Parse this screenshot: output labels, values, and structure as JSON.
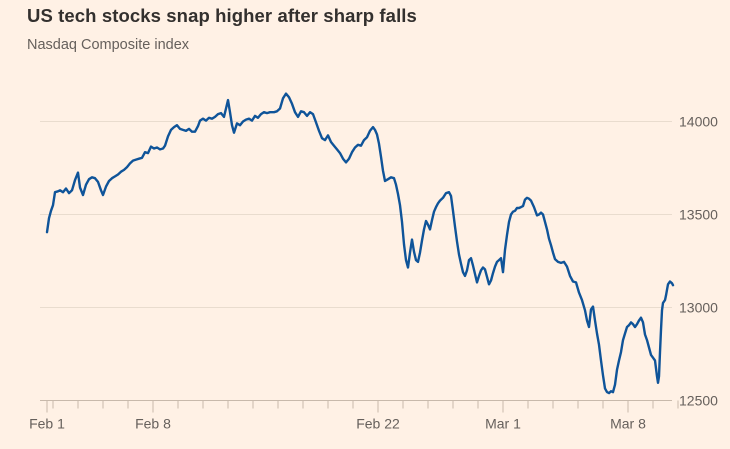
{
  "chart_data": {
    "type": "line",
    "title": "US tech stocks snap higher after sharp falls",
    "subtitle": "Nasdaq Composite index",
    "x_unit": "trading days since Feb 1 2021 (fractional = intraday)",
    "y_unit": "index points",
    "legend": "none",
    "grid": "horizontal",
    "y_axis_side": "right",
    "y_ticks": [
      12500,
      13000,
      13500,
      14000
    ],
    "ylim": [
      12500,
      14250
    ],
    "xlim": [
      -0.28,
      25.0
    ],
    "x_ticks": [
      {
        "label": "Feb 1",
        "d": 0.0
      },
      {
        "label": "Feb 8",
        "d": 4.24
      },
      {
        "label": "Feb 22",
        "d": 13.24
      },
      {
        "label": "Mar 1",
        "d": 18.24
      },
      {
        "label": "Mar 8",
        "d": 23.24
      }
    ],
    "x_minor_ticks_d": [
      0.24,
      1.24,
      2.24,
      3.24,
      5.24,
      6.24,
      7.24,
      8.24,
      9.24,
      10.24,
      11.24,
      12.24,
      14.24,
      15.24,
      16.24,
      17.24,
      19.24,
      20.24,
      21.24,
      22.24,
      24.24,
      25.24
    ],
    "series": [
      {
        "name": "Nasdaq Composite index",
        "color": "#0F5499",
        "points": [
          [
            0,
            13405
          ],
          [
            0.08,
            13480
          ],
          [
            0.16,
            13520
          ],
          [
            0.24,
            13550
          ],
          [
            0.32,
            13620
          ],
          [
            0.44,
            13625
          ],
          [
            0.52,
            13630
          ],
          [
            0.64,
            13620
          ],
          [
            0.76,
            13640
          ],
          [
            0.88,
            13615
          ],
          [
            1,
            13630
          ],
          [
            1.12,
            13685
          ],
          [
            1.24,
            13725
          ],
          [
            1.32,
            13645
          ],
          [
            1.44,
            13605
          ],
          [
            1.56,
            13660
          ],
          [
            1.68,
            13690
          ],
          [
            1.8,
            13700
          ],
          [
            1.92,
            13695
          ],
          [
            2.04,
            13675
          ],
          [
            2.16,
            13630
          ],
          [
            2.24,
            13605
          ],
          [
            2.36,
            13650
          ],
          [
            2.48,
            13680
          ],
          [
            2.6,
            13695
          ],
          [
            2.72,
            13705
          ],
          [
            2.84,
            13715
          ],
          [
            2.96,
            13730
          ],
          [
            3.08,
            13740
          ],
          [
            3.2,
            13755
          ],
          [
            3.32,
            13775
          ],
          [
            3.44,
            13790
          ],
          [
            3.56,
            13795
          ],
          [
            3.68,
            13800
          ],
          [
            3.8,
            13805
          ],
          [
            3.92,
            13835
          ],
          [
            4.04,
            13830
          ],
          [
            4.16,
            13865
          ],
          [
            4.28,
            13855
          ],
          [
            4.4,
            13860
          ],
          [
            4.52,
            13850
          ],
          [
            4.64,
            13855
          ],
          [
            4.72,
            13870
          ],
          [
            4.84,
            13920
          ],
          [
            4.96,
            13955
          ],
          [
            5.08,
            13970
          ],
          [
            5.2,
            13980
          ],
          [
            5.32,
            13960
          ],
          [
            5.44,
            13955
          ],
          [
            5.56,
            13950
          ],
          [
            5.68,
            13960
          ],
          [
            5.8,
            13945
          ],
          [
            5.92,
            13945
          ],
          [
            6.04,
            13975
          ],
          [
            6.12,
            14005
          ],
          [
            6.24,
            14015
          ],
          [
            6.36,
            14005
          ],
          [
            6.48,
            14020
          ],
          [
            6.6,
            14015
          ],
          [
            6.72,
            14025
          ],
          [
            6.84,
            14040
          ],
          [
            6.96,
            14045
          ],
          [
            7.08,
            14025
          ],
          [
            7.16,
            14070
          ],
          [
            7.24,
            14115
          ],
          [
            7.32,
            14050
          ],
          [
            7.4,
            13980
          ],
          [
            7.48,
            13940
          ],
          [
            7.6,
            13990
          ],
          [
            7.72,
            13980
          ],
          [
            7.84,
            14000
          ],
          [
            7.96,
            14010
          ],
          [
            8.08,
            14015
          ],
          [
            8.2,
            14005
          ],
          [
            8.32,
            14030
          ],
          [
            8.44,
            14020
          ],
          [
            8.56,
            14040
          ],
          [
            8.68,
            14050
          ],
          [
            8.8,
            14045
          ],
          [
            8.92,
            14050
          ],
          [
            9.08,
            14050
          ],
          [
            9.2,
            14055
          ],
          [
            9.32,
            14070
          ],
          [
            9.44,
            14125
          ],
          [
            9.56,
            14150
          ],
          [
            9.68,
            14130
          ],
          [
            9.8,
            14095
          ],
          [
            9.92,
            14050
          ],
          [
            10.04,
            14025
          ],
          [
            10.16,
            14055
          ],
          [
            10.28,
            14050
          ],
          [
            10.4,
            14030
          ],
          [
            10.52,
            14050
          ],
          [
            10.64,
            14040
          ],
          [
            10.76,
            13995
          ],
          [
            10.88,
            13950
          ],
          [
            11,
            13910
          ],
          [
            11.12,
            13900
          ],
          [
            11.24,
            13925
          ],
          [
            11.36,
            13890
          ],
          [
            11.48,
            13870
          ],
          [
            11.6,
            13850
          ],
          [
            11.72,
            13830
          ],
          [
            11.84,
            13800
          ],
          [
            11.96,
            13780
          ],
          [
            12.08,
            13800
          ],
          [
            12.2,
            13835
          ],
          [
            12.32,
            13860
          ],
          [
            12.44,
            13875
          ],
          [
            12.56,
            13870
          ],
          [
            12.68,
            13900
          ],
          [
            12.8,
            13915
          ],
          [
            12.92,
            13950
          ],
          [
            13.04,
            13970
          ],
          [
            13.12,
            13955
          ],
          [
            13.2,
            13930
          ],
          [
            13.28,
            13880
          ],
          [
            13.36,
            13810
          ],
          [
            13.44,
            13735
          ],
          [
            13.52,
            13680
          ],
          [
            13.64,
            13690
          ],
          [
            13.76,
            13700
          ],
          [
            13.88,
            13695
          ],
          [
            13.96,
            13660
          ],
          [
            14.04,
            13610
          ],
          [
            14.12,
            13550
          ],
          [
            14.2,
            13460
          ],
          [
            14.28,
            13340
          ],
          [
            14.36,
            13255
          ],
          [
            14.44,
            13215
          ],
          [
            14.52,
            13295
          ],
          [
            14.6,
            13365
          ],
          [
            14.68,
            13300
          ],
          [
            14.76,
            13255
          ],
          [
            14.84,
            13245
          ],
          [
            14.92,
            13295
          ],
          [
            15,
            13360
          ],
          [
            15.08,
            13420
          ],
          [
            15.16,
            13465
          ],
          [
            15.24,
            13445
          ],
          [
            15.32,
            13420
          ],
          [
            15.4,
            13470
          ],
          [
            15.48,
            13515
          ],
          [
            15.56,
            13540
          ],
          [
            15.64,
            13560
          ],
          [
            15.72,
            13575
          ],
          [
            15.84,
            13590
          ],
          [
            15.96,
            13615
          ],
          [
            16.08,
            13620
          ],
          [
            16.16,
            13600
          ],
          [
            16.24,
            13520
          ],
          [
            16.32,
            13435
          ],
          [
            16.4,
            13355
          ],
          [
            16.48,
            13285
          ],
          [
            16.56,
            13235
          ],
          [
            16.64,
            13190
          ],
          [
            16.72,
            13170
          ],
          [
            16.8,
            13200
          ],
          [
            16.88,
            13255
          ],
          [
            16.96,
            13265
          ],
          [
            17.04,
            13225
          ],
          [
            17.12,
            13180
          ],
          [
            17.2,
            13135
          ],
          [
            17.28,
            13170
          ],
          [
            17.36,
            13200
          ],
          [
            17.44,
            13215
          ],
          [
            17.52,
            13205
          ],
          [
            17.6,
            13165
          ],
          [
            17.68,
            13125
          ],
          [
            17.76,
            13145
          ],
          [
            17.84,
            13185
          ],
          [
            17.92,
            13220
          ],
          [
            18,
            13245
          ],
          [
            18.08,
            13255
          ],
          [
            18.16,
            13265
          ],
          [
            18.24,
            13190
          ],
          [
            18.32,
            13310
          ],
          [
            18.4,
            13390
          ],
          [
            18.48,
            13460
          ],
          [
            18.56,
            13500
          ],
          [
            18.64,
            13515
          ],
          [
            18.72,
            13520
          ],
          [
            18.8,
            13535
          ],
          [
            18.88,
            13535
          ],
          [
            18.96,
            13540
          ],
          [
            19.04,
            13545
          ],
          [
            19.12,
            13580
          ],
          [
            19.2,
            13590
          ],
          [
            19.28,
            13585
          ],
          [
            19.36,
            13575
          ],
          [
            19.48,
            13540
          ],
          [
            19.6,
            13495
          ],
          [
            19.68,
            13500
          ],
          [
            19.76,
            13510
          ],
          [
            19.84,
            13500
          ],
          [
            19.92,
            13460
          ],
          [
            20,
            13420
          ],
          [
            20.08,
            13370
          ],
          [
            20.16,
            13335
          ],
          [
            20.24,
            13295
          ],
          [
            20.32,
            13260
          ],
          [
            20.44,
            13245
          ],
          [
            20.56,
            13240
          ],
          [
            20.68,
            13245
          ],
          [
            20.8,
            13220
          ],
          [
            20.92,
            13170
          ],
          [
            21.04,
            13140
          ],
          [
            21.16,
            13135
          ],
          [
            21.28,
            13080
          ],
          [
            21.4,
            13040
          ],
          [
            21.52,
            12985
          ],
          [
            21.6,
            12930
          ],
          [
            21.68,
            12895
          ],
          [
            21.76,
            12990
          ],
          [
            21.84,
            13005
          ],
          [
            21.92,
            12930
          ],
          [
            22,
            12860
          ],
          [
            22.08,
            12800
          ],
          [
            22.16,
            12715
          ],
          [
            22.24,
            12635
          ],
          [
            22.32,
            12565
          ],
          [
            22.4,
            12545
          ],
          [
            22.48,
            12540
          ],
          [
            22.56,
            12550
          ],
          [
            22.64,
            12545
          ],
          [
            22.72,
            12585
          ],
          [
            22.8,
            12665
          ],
          [
            22.88,
            12715
          ],
          [
            22.96,
            12760
          ],
          [
            23.04,
            12825
          ],
          [
            23.12,
            12860
          ],
          [
            23.2,
            12895
          ],
          [
            23.28,
            12905
          ],
          [
            23.36,
            12920
          ],
          [
            23.44,
            12910
          ],
          [
            23.52,
            12895
          ],
          [
            23.6,
            12910
          ],
          [
            23.68,
            12930
          ],
          [
            23.76,
            12945
          ],
          [
            23.84,
            12920
          ],
          [
            23.92,
            12855
          ],
          [
            24,
            12825
          ],
          [
            24.08,
            12785
          ],
          [
            24.16,
            12745
          ],
          [
            24.24,
            12730
          ],
          [
            24.32,
            12715
          ],
          [
            24.4,
            12630
          ],
          [
            24.44,
            12595
          ],
          [
            24.48,
            12630
          ],
          [
            24.52,
            12760
          ],
          [
            24.56,
            12880
          ],
          [
            24.6,
            12985
          ],
          [
            24.64,
            13025
          ],
          [
            24.72,
            13040
          ],
          [
            24.76,
            13065
          ],
          [
            24.8,
            13095
          ],
          [
            24.84,
            13125
          ],
          [
            24.92,
            13140
          ],
          [
            25,
            13130
          ],
          [
            25.04,
            13120
          ]
        ]
      }
    ],
    "colors": {
      "background": "#FFF1E5",
      "line": "#0F5499",
      "gridline": "#E9DCCE",
      "axis": "#C8B9AB",
      "tick_label": "#66605C",
      "title_text": "#33302E",
      "subtitle_text": "#66605C"
    }
  }
}
